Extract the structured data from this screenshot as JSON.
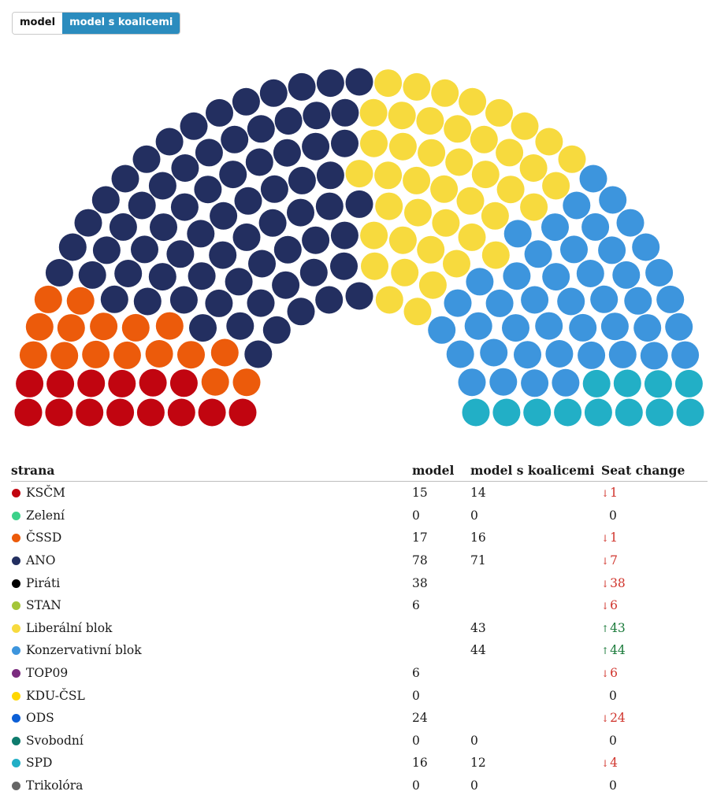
{
  "toggle": {
    "model_label": "model",
    "coalition_label": "model s koalicemi",
    "active": "model s koalicemi"
  },
  "chart_data": {
    "type": "parliament",
    "title": "",
    "total_seats": 200,
    "view": "model s koalicemi",
    "series": [
      {
        "name": "KSČM",
        "seats": 14,
        "color": "#c10510"
      },
      {
        "name": "Zelení",
        "seats": 0,
        "color": "#3cd18a"
      },
      {
        "name": "ČSSD",
        "seats": 16,
        "color": "#ec5b0b"
      },
      {
        "name": "ANO",
        "seats": 71,
        "color": "#232f60"
      },
      {
        "name": "Liberální blok",
        "seats": 43,
        "color": "#f7da3e"
      },
      {
        "name": "Konzervativní blok",
        "seats": 44,
        "color": "#3d95dd"
      },
      {
        "name": "SPD",
        "seats": 12,
        "color": "#22afc6"
      }
    ]
  },
  "table": {
    "headers": {
      "party": "strana",
      "model": "model",
      "coalition": "model s koalicemi",
      "change": "Seat change"
    },
    "rows": [
      {
        "name": "KSČM",
        "color": "#c10510",
        "model": "15",
        "coalition": "14",
        "change": "1",
        "direction": "down"
      },
      {
        "name": "Zelení",
        "color": "#3cd18a",
        "model": "0",
        "coalition": "0",
        "change": "0",
        "direction": "none"
      },
      {
        "name": "ČSSD",
        "color": "#ec5b0b",
        "model": "17",
        "coalition": "16",
        "change": "1",
        "direction": "down"
      },
      {
        "name": "ANO",
        "color": "#232f60",
        "model": "78",
        "coalition": "71",
        "change": "7",
        "direction": "down"
      },
      {
        "name": "Piráti",
        "color": "#000000",
        "model": "38",
        "coalition": "",
        "change": "38",
        "direction": "down"
      },
      {
        "name": "STAN",
        "color": "#a4c639",
        "model": "6",
        "coalition": "",
        "change": "6",
        "direction": "down"
      },
      {
        "name": "Liberální blok",
        "color": "#f7da3e",
        "model": "",
        "coalition": "43",
        "change": "43",
        "direction": "up"
      },
      {
        "name": "Konzervativní blok",
        "color": "#3d95dd",
        "model": "",
        "coalition": "44",
        "change": "44",
        "direction": "up"
      },
      {
        "name": "TOP09",
        "color": "#7b2c7f",
        "model": "6",
        "coalition": "",
        "change": "6",
        "direction": "down"
      },
      {
        "name": "KDU-ČSL",
        "color": "#ffd700",
        "model": "0",
        "coalition": "",
        "change": "0",
        "direction": "none"
      },
      {
        "name": "ODS",
        "color": "#0c5fd6",
        "model": "24",
        "coalition": "",
        "change": "24",
        "direction": "down"
      },
      {
        "name": "Svobodní",
        "color": "#0e7b6d",
        "model": "0",
        "coalition": "0",
        "change": "0",
        "direction": "none"
      },
      {
        "name": "SPD",
        "color": "#22afc6",
        "model": "16",
        "coalition": "12",
        "change": "4",
        "direction": "down"
      },
      {
        "name": "Trikolóra",
        "color": "#666666",
        "model": "0",
        "coalition": "0",
        "change": "0",
        "direction": "none"
      }
    ]
  }
}
